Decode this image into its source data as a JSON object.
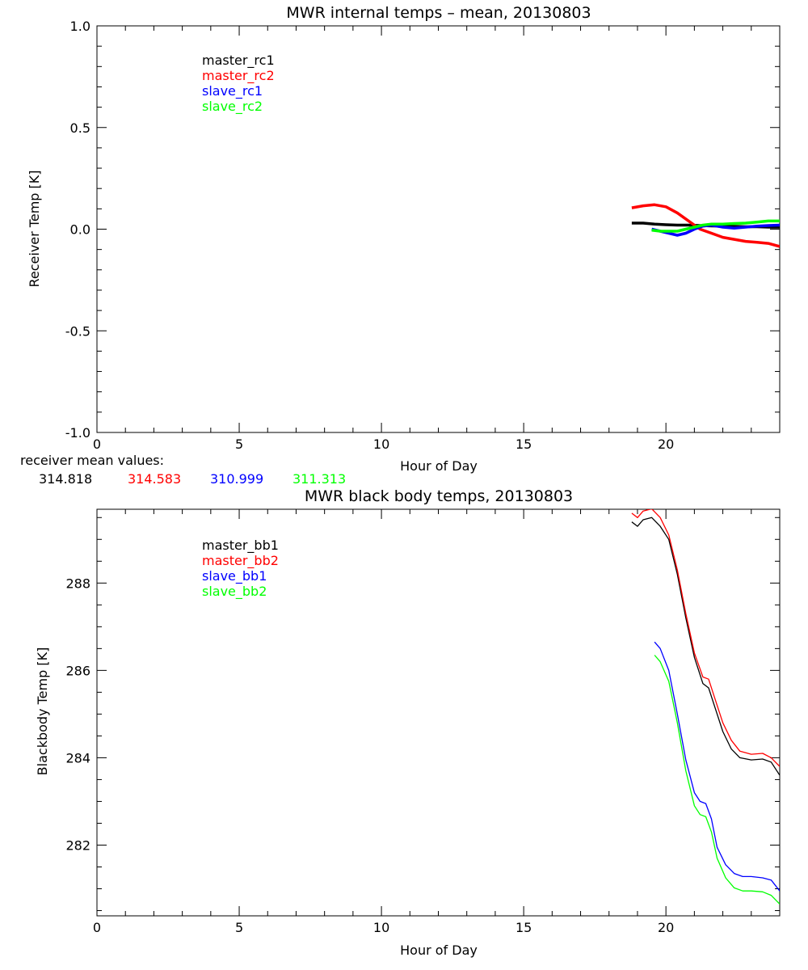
{
  "chart_data": [
    {
      "type": "line",
      "title": "MWR internal temps – mean, 20130803",
      "xlabel": "Hour of Day",
      "ylabel": "Receiver Temp [K]",
      "xlim": [
        0,
        24
      ],
      "ylim": [
        -1.0,
        1.0
      ],
      "xticks": [
        0,
        5,
        10,
        15,
        20
      ],
      "xtick_labels": [
        "0",
        "5",
        "10",
        "15",
        "20"
      ],
      "yticks": [
        1.0,
        0.5,
        0.0,
        -0.5,
        -1.0
      ],
      "ytick_labels": [
        "1.0",
        "0.5",
        "0.0",
        "-0.5",
        "-1.0"
      ],
      "grid": false,
      "legend_placement": "top-left",
      "series": [
        {
          "name": "master_rc1",
          "color": "#000000",
          "x": [
            18.8,
            19.2,
            19.6,
            20.0,
            20.4,
            20.8,
            21.2,
            21.6,
            22.0,
            22.4,
            22.8,
            23.2,
            23.6,
            24.0
          ],
          "y": [
            0.03,
            0.03,
            0.025,
            0.022,
            0.02,
            0.02,
            0.018,
            0.016,
            0.015,
            0.014,
            0.012,
            0.012,
            0.01,
            0.01
          ]
        },
        {
          "name": "master_rc2",
          "color": "#ff0000",
          "x": [
            18.8,
            19.2,
            19.6,
            20.0,
            20.4,
            20.8,
            21.2,
            21.6,
            22.0,
            22.4,
            22.8,
            23.2,
            23.6,
            24.0
          ],
          "y": [
            0.105,
            0.115,
            0.12,
            0.11,
            0.08,
            0.04,
            0.0,
            -0.02,
            -0.04,
            -0.05,
            -0.06,
            -0.065,
            -0.07,
            -0.085
          ]
        },
        {
          "name": "slave_rc1",
          "color": "#0000ff",
          "x": [
            19.5,
            19.8,
            20.1,
            20.4,
            20.7,
            21.0,
            21.3,
            21.6,
            22.0,
            22.4,
            22.8,
            23.2,
            23.6,
            24.0
          ],
          "y": [
            0.0,
            -0.01,
            -0.02,
            -0.03,
            -0.02,
            0.0,
            0.015,
            0.02,
            0.01,
            0.005,
            0.01,
            0.015,
            0.018,
            0.02
          ]
        },
        {
          "name": "slave_rc2",
          "color": "#00ff00",
          "x": [
            19.5,
            19.8,
            20.1,
            20.4,
            20.7,
            21.0,
            21.3,
            21.6,
            22.0,
            22.4,
            22.8,
            23.2,
            23.6,
            24.0
          ],
          "y": [
            -0.005,
            -0.01,
            -0.01,
            -0.01,
            0.0,
            0.01,
            0.02,
            0.025,
            0.025,
            0.028,
            0.03,
            0.035,
            0.04,
            0.04
          ]
        }
      ]
    },
    {
      "type": "line",
      "title": "MWR black body temps, 20130803",
      "xlabel": "Hour of Day",
      "ylabel": "Blackbody Temp [K]",
      "xlim": [
        0,
        24
      ],
      "ylim": [
        280.38,
        289.69
      ],
      "xticks": [
        0,
        5,
        10,
        15,
        20
      ],
      "xtick_labels": [
        "0",
        "5",
        "10",
        "15",
        "20"
      ],
      "yticks": [
        288,
        286,
        284,
        282
      ],
      "ytick_labels": [
        "288",
        "286",
        "284",
        "282"
      ],
      "grid": false,
      "legend_placement": "top-left",
      "series": [
        {
          "name": "master_bb1",
          "color": "#000000",
          "x": [
            18.8,
            19.0,
            19.2,
            19.5,
            19.8,
            20.1,
            20.4,
            20.7,
            21.0,
            21.3,
            21.5,
            21.7,
            22.0,
            22.3,
            22.6,
            23.0,
            23.4,
            23.7,
            24.0
          ],
          "y": [
            289.4,
            289.3,
            289.45,
            289.5,
            289.3,
            289.0,
            288.2,
            287.2,
            286.3,
            285.7,
            285.6,
            285.2,
            284.6,
            284.2,
            284.0,
            283.95,
            283.97,
            283.9,
            283.6
          ]
        },
        {
          "name": "master_bb2",
          "color": "#ff0000",
          "x": [
            18.8,
            19.0,
            19.2,
            19.5,
            19.8,
            20.1,
            20.4,
            20.7,
            21.0,
            21.3,
            21.5,
            21.7,
            22.0,
            22.3,
            22.6,
            23.0,
            23.4,
            23.7,
            24.0
          ],
          "y": [
            289.6,
            289.5,
            289.65,
            289.7,
            289.5,
            289.1,
            288.3,
            287.3,
            286.4,
            285.85,
            285.8,
            285.4,
            284.8,
            284.4,
            284.15,
            284.08,
            284.1,
            284.0,
            283.8
          ]
        },
        {
          "name": "slave_bb1",
          "color": "#0000ff",
          "x": [
            19.6,
            19.8,
            20.1,
            20.4,
            20.7,
            21.0,
            21.2,
            21.4,
            21.6,
            21.8,
            22.1,
            22.4,
            22.7,
            23.0,
            23.4,
            23.7,
            24.0
          ],
          "y": [
            286.65,
            286.5,
            286.0,
            285.0,
            283.95,
            283.2,
            283.0,
            282.95,
            282.6,
            281.95,
            281.55,
            281.35,
            281.28,
            281.28,
            281.25,
            281.2,
            280.95
          ]
        },
        {
          "name": "slave_bb2",
          "color": "#00ff00",
          "x": [
            19.6,
            19.8,
            20.1,
            20.4,
            20.7,
            21.0,
            21.2,
            21.4,
            21.6,
            21.8,
            22.1,
            22.4,
            22.7,
            23.0,
            23.4,
            23.7,
            24.0
          ],
          "y": [
            286.35,
            286.2,
            285.75,
            284.8,
            283.7,
            282.9,
            282.7,
            282.65,
            282.3,
            281.7,
            281.25,
            281.02,
            280.95,
            280.95,
            280.93,
            280.85,
            280.65
          ]
        }
      ]
    }
  ],
  "receiver_means": {
    "label": "receiver mean values:",
    "values": [
      {
        "text": "314.818",
        "color": "#000000"
      },
      {
        "text": "314.583",
        "color": "#ff0000"
      },
      {
        "text": "310.999",
        "color": "#0000ff"
      },
      {
        "text": "311.313",
        "color": "#00ff00"
      }
    ]
  }
}
